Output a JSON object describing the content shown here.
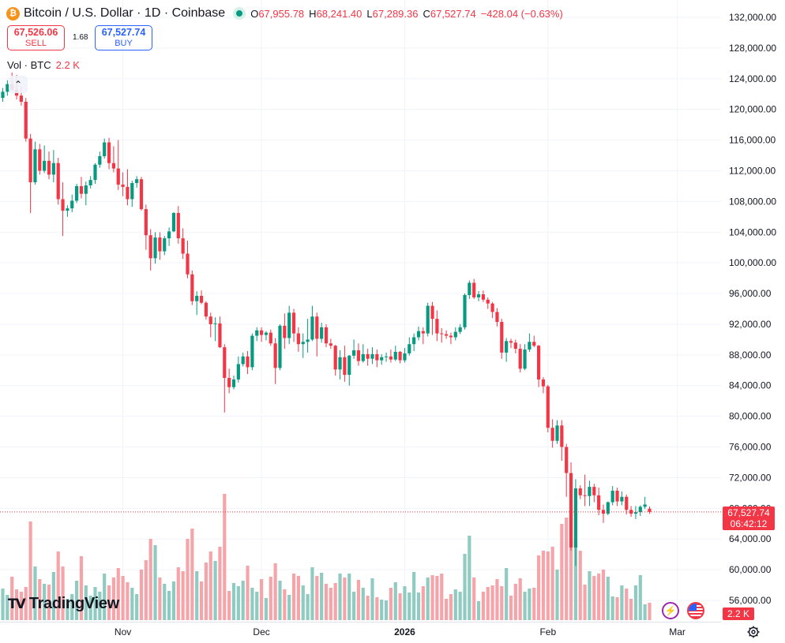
{
  "header": {
    "coin_glyph": "₿",
    "symbol": "Bitcoin / U.S. Dollar · 1D · Coinbase",
    "open_label": "O",
    "open": "67,955.78",
    "high_label": "H",
    "high": "68,241.40",
    "low_label": "L",
    "low": "67,289.36",
    "close_label": "C",
    "close": "67,527.74",
    "change": "−428.04 (−0.63%)"
  },
  "trade": {
    "sell_price": "67,526.06",
    "sell_label": "SELL",
    "spread": "1.68",
    "buy_price": "67,527.74",
    "buy_label": "BUY"
  },
  "volume_legend": {
    "label": "Vol · BTC",
    "value": "2.2 K"
  },
  "collapse_glyph": "⌃",
  "price_tag": {
    "price": "67,527.74",
    "countdown": "06:42:12"
  },
  "volume_tag": "2.2 K",
  "logo": {
    "icon": "TV",
    "text": "TradingView"
  },
  "colors": {
    "up": "#089981",
    "down": "#f23645",
    "up_vol": "#8fcbc1",
    "down_vol": "#f5a5aa",
    "grid": "#f0f3fa"
  },
  "icons": [
    "bitcoin-icon",
    "live-dot-icon",
    "chevron-up-icon",
    "tradingview-logo-icon",
    "lightning-icon",
    "us-flag-icon",
    "settings-icon"
  ],
  "chart_data": {
    "type": "candlestick",
    "y_axis": {
      "ticks": [
        132000,
        128000,
        124000,
        120000,
        116000,
        112000,
        108000,
        104000,
        100000,
        96000,
        92000,
        88000,
        84000,
        80000,
        76000,
        72000,
        68000,
        64000,
        60000,
        56000
      ],
      "tick_labels": [
        "132,000.00",
        "128,000.00",
        "124,000.00",
        "120,000.00",
        "116,000.00",
        "112,000.00",
        "108,000.00",
        "104,000.00",
        "100,000.00",
        "96,000.00",
        "92,000.00",
        "88,000.00",
        "84,000.00",
        "80,000.00",
        "76,000.00",
        "72,000.00",
        "68,000.00",
        "64,000.00",
        "60,000.00",
        "56,000.00"
      ],
      "range": [
        54500,
        133400
      ]
    },
    "x_axis": {
      "labels": [
        {
          "text": "Nov",
          "bar": 26,
          "bold": false
        },
        {
          "text": "Dec",
          "bar": 56,
          "bold": false
        },
        {
          "text": "2026",
          "bar": 87,
          "bold": true
        },
        {
          "text": "Feb",
          "bar": 118,
          "bold": false
        },
        {
          "text": "Mar",
          "bar": 146,
          "bold": false
        }
      ]
    },
    "last_price": 67527.74,
    "volume_range_max": 13000,
    "candles": [
      [
        121500,
        122800,
        121000,
        122300,
        4000
      ],
      [
        122300,
        123800,
        121800,
        123300,
        3200
      ],
      [
        123300,
        124800,
        122500,
        122600,
        5500
      ],
      [
        122600,
        124500,
        121300,
        121800,
        3900
      ],
      [
        121800,
        123000,
        120500,
        121000,
        3600
      ],
      [
        121000,
        121500,
        115800,
        116200,
        4200
      ],
      [
        116200,
        116800,
        106500,
        110500,
        12500
      ],
      [
        110500,
        115800,
        110200,
        114800,
        6800
      ],
      [
        114800,
        115500,
        111500,
        112000,
        5200
      ],
      [
        112000,
        115300,
        111700,
        113300,
        4600
      ],
      [
        113300,
        114500,
        110900,
        111500,
        4500
      ],
      [
        111500,
        114700,
        110500,
        113000,
        6100
      ],
      [
        113000,
        113700,
        107600,
        108300,
        8700
      ],
      [
        108300,
        110500,
        103500,
        106800,
        6800
      ],
      [
        106800,
        107500,
        106000,
        107100,
        2700
      ],
      [
        107100,
        108900,
        106600,
        108100,
        3300
      ],
      [
        108100,
        110300,
        107800,
        110000,
        5000
      ],
      [
        110000,
        111200,
        108400,
        109000,
        8100
      ],
      [
        109000,
        110600,
        107500,
        110100,
        4400
      ],
      [
        110100,
        111300,
        109700,
        110800,
        3100
      ],
      [
        110800,
        113000,
        110300,
        112800,
        4200
      ],
      [
        112800,
        114500,
        112400,
        113900,
        3600
      ],
      [
        113900,
        116200,
        113600,
        115700,
        5900
      ],
      [
        115700,
        116300,
        112200,
        113000,
        4400
      ],
      [
        113000,
        115200,
        111800,
        112300,
        5400
      ],
      [
        112300,
        116000,
        109500,
        110200,
        6600
      ],
      [
        110200,
        111800,
        108700,
        109900,
        5600
      ],
      [
        109900,
        112200,
        107500,
        108300,
        4800
      ],
      [
        108300,
        110700,
        107300,
        110400,
        4100
      ],
      [
        110400,
        111300,
        109800,
        110900,
        3300
      ],
      [
        110900,
        111200,
        106800,
        107000,
        6400
      ],
      [
        107000,
        107600,
        101700,
        103600,
        7600
      ],
      [
        103600,
        104400,
        99000,
        100600,
        10300
      ],
      [
        100600,
        104000,
        99900,
        103300,
        9500
      ],
      [
        103300,
        104000,
        100400,
        101500,
        5400
      ],
      [
        101500,
        103500,
        101000,
        103200,
        4600
      ],
      [
        103200,
        104600,
        102200,
        104100,
        3700
      ],
      [
        104100,
        106600,
        104000,
        106500,
        4900
      ],
      [
        106500,
        107400,
        102500,
        103200,
        6700
      ],
      [
        103200,
        104500,
        100500,
        101200,
        6200
      ],
      [
        101200,
        102900,
        98000,
        98500,
        10300
      ],
      [
        98500,
        99000,
        94500,
        95000,
        11600
      ],
      [
        95000,
        96300,
        93200,
        95700,
        6200
      ],
      [
        95700,
        96400,
        94600,
        94800,
        4900
      ],
      [
        94800,
        95000,
        92600,
        93000,
        7300
      ],
      [
        93000,
        93500,
        90300,
        92000,
        8700
      ],
      [
        92000,
        92900,
        89800,
        92100,
        7500
      ],
      [
        92100,
        93000,
        88900,
        89000,
        9300
      ],
      [
        89000,
        89400,
        80500,
        85000,
        16000
      ],
      [
        85000,
        86200,
        83000,
        83800,
        3700
      ],
      [
        83800,
        85300,
        83500,
        84800,
        4700
      ],
      [
        84800,
        87800,
        84400,
        86800,
        4300
      ],
      [
        86800,
        88300,
        86500,
        87800,
        5000
      ],
      [
        87800,
        88500,
        85500,
        86400,
        6900
      ],
      [
        86400,
        90800,
        86000,
        90500,
        4100
      ],
      [
        90500,
        91600,
        89800,
        91200,
        3600
      ],
      [
        91200,
        91600,
        89700,
        90600,
        5200
      ],
      [
        90600,
        91100,
        89900,
        90900,
        2800
      ],
      [
        90900,
        91300,
        89200,
        89500,
        5500
      ],
      [
        89500,
        90200,
        84200,
        86300,
        7200
      ],
      [
        86300,
        92000,
        86000,
        91800,
        5000
      ],
      [
        91800,
        93400,
        88800,
        90200,
        3900
      ],
      [
        90200,
        94400,
        89400,
        93500,
        3200
      ],
      [
        93500,
        94000,
        89700,
        90800,
        5900
      ],
      [
        90800,
        91600,
        88400,
        89400,
        5600
      ],
      [
        89400,
        90800,
        87600,
        89700,
        4400
      ],
      [
        89700,
        92700,
        88300,
        90000,
        3300
      ],
      [
        90000,
        94400,
        89800,
        93000,
        6700
      ],
      [
        93000,
        93500,
        87800,
        90100,
        5600
      ],
      [
        90100,
        92200,
        89600,
        91600,
        6000
      ],
      [
        91600,
        92000,
        89000,
        89500,
        4600
      ],
      [
        89500,
        90100,
        88800,
        89200,
        4100
      ],
      [
        89200,
        89300,
        85300,
        86100,
        4700
      ],
      [
        86100,
        88600,
        84800,
        87700,
        5900
      ],
      [
        87700,
        89200,
        84500,
        85400,
        5400
      ],
      [
        85400,
        88000,
        84000,
        87900,
        5900
      ],
      [
        87900,
        90000,
        87500,
        88600,
        3600
      ],
      [
        88600,
        89500,
        86600,
        87200,
        5100
      ],
      [
        87200,
        89400,
        87000,
        88100,
        4100
      ],
      [
        88100,
        88800,
        86600,
        87500,
        3100
      ],
      [
        87500,
        89000,
        86800,
        88100,
        5300
      ],
      [
        88100,
        88700,
        86400,
        87300,
        2900
      ],
      [
        87300,
        88100,
        86700,
        87700,
        2600
      ],
      [
        87700,
        88300,
        87100,
        87800,
        2500
      ],
      [
        87800,
        88700,
        87000,
        87400,
        4100
      ],
      [
        87400,
        89200,
        87200,
        88400,
        4800
      ],
      [
        88400,
        88500,
        86900,
        87300,
        3400
      ],
      [
        87300,
        88900,
        87000,
        88200,
        4300
      ],
      [
        88200,
        90300,
        87900,
        89400,
        3500
      ],
      [
        89400,
        90800,
        88500,
        90300,
        6100
      ],
      [
        90300,
        91700,
        89900,
        91100,
        3500
      ],
      [
        91100,
        91600,
        89400,
        90800,
        4300
      ],
      [
        90800,
        94800,
        90400,
        94400,
        5400
      ],
      [
        94400,
        94900,
        90600,
        92700,
        5700
      ],
      [
        92700,
        93800,
        89800,
        90800,
        5600
      ],
      [
        90800,
        91500,
        89600,
        90700,
        5900
      ],
      [
        90700,
        91200,
        90100,
        90500,
        2700
      ],
      [
        90500,
        90900,
        89400,
        90300,
        3300
      ],
      [
        90300,
        91600,
        89900,
        91000,
        3900
      ],
      [
        91000,
        92000,
        90700,
        91600,
        3600
      ],
      [
        91600,
        96000,
        91300,
        95800,
        8400
      ],
      [
        95800,
        97700,
        95300,
        97400,
        10700
      ],
      [
        97400,
        97900,
        95300,
        95500,
        5400
      ],
      [
        95500,
        96300,
        95000,
        95900,
        2400
      ],
      [
        95900,
        96400,
        94900,
        95200,
        3600
      ],
      [
        95200,
        95500,
        94000,
        94700,
        4200
      ],
      [
        94700,
        94900,
        92800,
        93600,
        4400
      ],
      [
        93600,
        94100,
        91700,
        92300,
        5200
      ],
      [
        92300,
        92700,
        87500,
        88300,
        4300
      ],
      [
        88300,
        90200,
        87100,
        89800,
        6600
      ],
      [
        89800,
        90100,
        88900,
        89600,
        3100
      ],
      [
        89600,
        90000,
        88200,
        88800,
        4600
      ],
      [
        88800,
        89400,
        85700,
        86200,
        5300
      ],
      [
        86200,
        89400,
        86000,
        88700,
        3600
      ],
      [
        88700,
        90800,
        88400,
        89700,
        4000
      ],
      [
        89700,
        90500,
        89000,
        89200,
        4100
      ],
      [
        89200,
        89300,
        83800,
        84800,
        8200
      ],
      [
        84800,
        85100,
        83000,
        83900,
        8800
      ],
      [
        83900,
        84100,
        77900,
        78500,
        8700
      ],
      [
        78500,
        79600,
        75900,
        76800,
        9300
      ],
      [
        76800,
        79500,
        76400,
        78800,
        6400
      ],
      [
        78800,
        79500,
        74200,
        76000,
        12200
      ],
      [
        76000,
        76400,
        69500,
        72600,
        13000
      ],
      [
        72600,
        74000,
        62500,
        62900,
        14000
      ],
      [
        62900,
        71800,
        60500,
        70600,
        10100
      ],
      [
        70600,
        71000,
        69200,
        69700,
        8800
      ],
      [
        69700,
        72400,
        68300,
        69600,
        4500
      ],
      [
        69600,
        71600,
        68300,
        70800,
        6200
      ],
      [
        70800,
        71200,
        68800,
        69700,
        5600
      ],
      [
        69700,
        70700,
        67100,
        67800,
        5900
      ],
      [
        67800,
        68500,
        66100,
        67300,
        6400
      ],
      [
        67300,
        68900,
        67100,
        68800,
        5500
      ],
      [
        68800,
        70900,
        68400,
        70300,
        3000
      ],
      [
        70300,
        70700,
        68300,
        68900,
        2900
      ],
      [
        68900,
        70200,
        68400,
        69500,
        4400
      ],
      [
        69500,
        69800,
        67200,
        67800,
        4000
      ],
      [
        67800,
        68300,
        66900,
        67300,
        2700
      ],
      [
        67300,
        68300,
        66600,
        67500,
        4400
      ],
      [
        67500,
        68400,
        67000,
        68200,
        5700
      ],
      [
        68200,
        69500,
        67900,
        68500,
        2000
      ],
      [
        67955.78,
        68241.4,
        67289.36,
        67527.74,
        2200
      ]
    ]
  }
}
